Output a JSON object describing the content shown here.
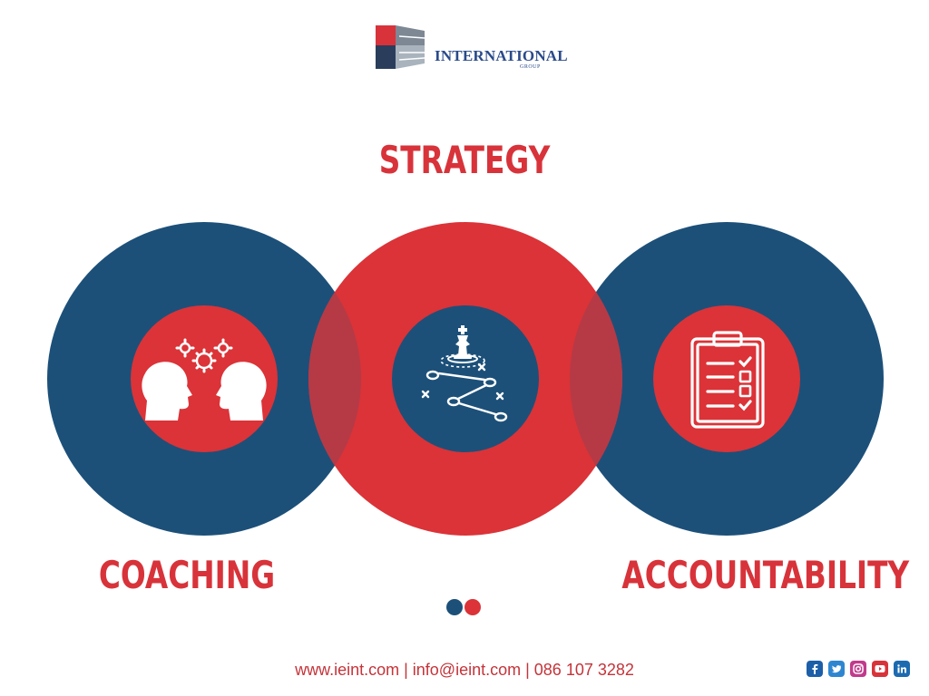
{
  "logo": {
    "word": "INTERNATIONAL",
    "sub": "GROUP"
  },
  "headings": {
    "strategy": "STRATEGY",
    "coaching": "COACHING",
    "accountability": "ACCOUNTABILITY"
  },
  "icons": {
    "coaching": "heads-with-gears-icon",
    "strategy": "chess-strategy-icon",
    "accountability": "clipboard-checklist-icon"
  },
  "colors": {
    "red": "#db3338",
    "blue": "#1c5079",
    "overlap": "#b53a46"
  },
  "pagination": {
    "count": 2,
    "active_index": 0
  },
  "footer": {
    "contact": "www.ieint.com | info@ieint.com | 086 107 3282"
  },
  "social": [
    "facebook-icon",
    "twitter-icon",
    "instagram-icon",
    "youtube-icon",
    "linkedin-icon"
  ]
}
